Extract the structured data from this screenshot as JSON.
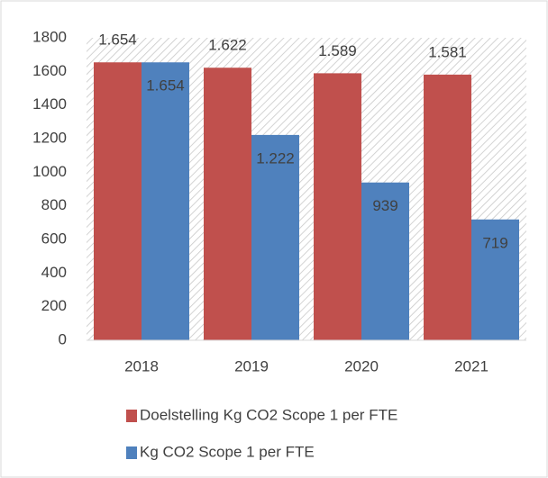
{
  "chart_data": {
    "type": "bar",
    "categories": [
      "2018",
      "2019",
      "2020",
      "2021"
    ],
    "series": [
      {
        "name": "Doelstelling Kg CO2 Scope 1 per FTE",
        "color": "#c0504d",
        "values": [
          1654,
          1622,
          1589,
          1581
        ],
        "value_labels": [
          "1.654",
          "1.622",
          "1.589",
          "1.581"
        ]
      },
      {
        "name": "Kg CO2 Scope 1 per FTE",
        "color": "#4f81bd",
        "values": [
          1654,
          1222,
          939,
          719
        ],
        "value_labels": [
          "1.654",
          "1.222",
          "939",
          "719"
        ]
      }
    ],
    "ylim": [
      0,
      1800
    ],
    "yticks": [
      0,
      200,
      400,
      600,
      800,
      1000,
      1200,
      1400,
      1600,
      1800
    ],
    "legend": "bottom"
  }
}
